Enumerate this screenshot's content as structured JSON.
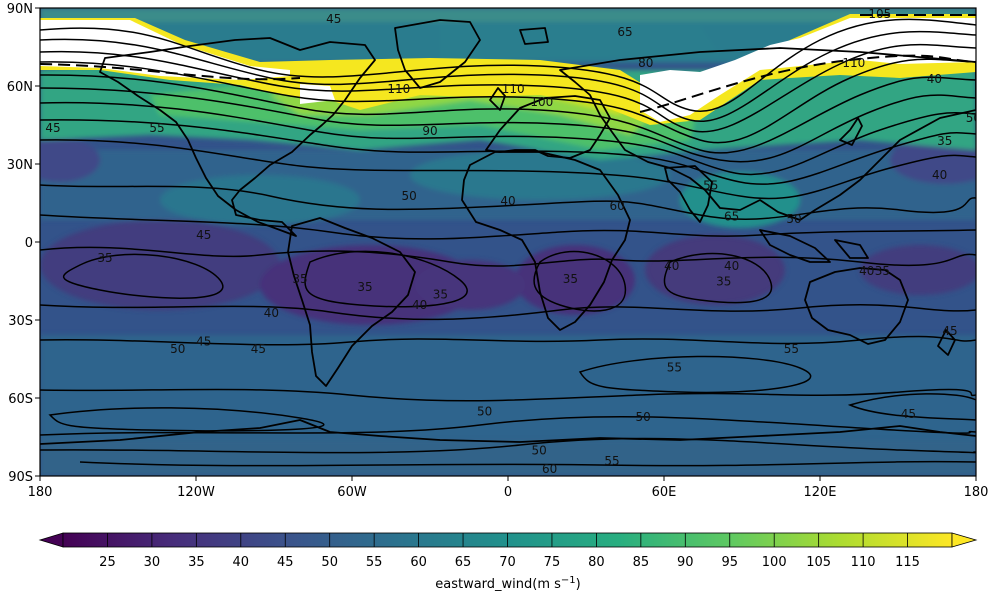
{
  "map": {
    "projection": "PlateCarree",
    "variable": "eastward_wind",
    "units_label": "eastward_wind(m s",
    "units_superscript": "−1",
    "units_close": ")",
    "x_ticks": [
      "180",
      "120W",
      "60W",
      "0",
      "60E",
      "120E",
      "180"
    ],
    "y_ticks": [
      "90N",
      "60N",
      "30N",
      "0",
      "30S",
      "60S",
      "90S"
    ],
    "colormap": "viridis",
    "color_levels": [
      25,
      30,
      35,
      40,
      45,
      50,
      55,
      60,
      65,
      70,
      75,
      80,
      85,
      90,
      95,
      100,
      105,
      110,
      115
    ],
    "colorbar_extend": "both",
    "above_max_color": "#ffffff",
    "contour_color": "#000000",
    "contour_labels": [
      {
        "text": "110",
        "lon": -42,
        "lat": 58
      },
      {
        "text": "110",
        "lon": 2,
        "lat": 58
      },
      {
        "text": "100",
        "lon": 13,
        "lat": 53
      },
      {
        "text": "90",
        "lon": -30,
        "lat": 42
      },
      {
        "text": "45",
        "lon": -175,
        "lat": 43
      },
      {
        "text": "45",
        "lon": -67,
        "lat": 85
      },
      {
        "text": "55",
        "lon": -135,
        "lat": 43
      },
      {
        "text": "65",
        "lon": 45,
        "lat": 80
      },
      {
        "text": "80",
        "lon": 53,
        "lat": 68
      },
      {
        "text": "110",
        "lon": 133,
        "lat": 68
      },
      {
        "text": "105",
        "lon": 143,
        "lat": 87
      },
      {
        "text": "40",
        "lon": 164,
        "lat": 62
      },
      {
        "text": "35",
        "lon": 168,
        "lat": 38
      },
      {
        "text": "40",
        "lon": 166,
        "lat": 25
      },
      {
        "text": "50",
        "lon": 179,
        "lat": 47
      },
      {
        "text": "50",
        "lon": -38,
        "lat": 17
      },
      {
        "text": "60",
        "lon": 42,
        "lat": 13
      },
      {
        "text": "65",
        "lon": 86,
        "lat": 9
      },
      {
        "text": "55",
        "lon": 78,
        "lat": 21
      },
      {
        "text": "50",
        "lon": 110,
        "lat": 8
      },
      {
        "text": "45",
        "lon": -117,
        "lat": 2
      },
      {
        "text": "40",
        "lon": 0,
        "lat": 15
      },
      {
        "text": "40",
        "lon": 63,
        "lat": -10
      },
      {
        "text": "40",
        "lon": 138,
        "lat": -12
      },
      {
        "text": "40",
        "lon": 86,
        "lat": -10
      },
      {
        "text": "35",
        "lon": -155,
        "lat": -7
      },
      {
        "text": "35",
        "lon": -80,
        "lat": -15
      },
      {
        "text": "35",
        "lon": -55,
        "lat": -18
      },
      {
        "text": "35",
        "lon": -26,
        "lat": -21
      },
      {
        "text": "35",
        "lon": 83,
        "lat": -16
      },
      {
        "text": "35",
        "lon": 24,
        "lat": -15
      },
      {
        "text": "35",
        "lon": 144,
        "lat": -12
      },
      {
        "text": "40",
        "lon": -34,
        "lat": -25
      },
      {
        "text": "40",
        "lon": -91,
        "lat": -28
      },
      {
        "text": "45",
        "lon": -117,
        "lat": -39
      },
      {
        "text": "45",
        "lon": -96,
        "lat": -42
      },
      {
        "text": "45",
        "lon": 170,
        "lat": -35
      },
      {
        "text": "50",
        "lon": -127,
        "lat": -42
      },
      {
        "text": "50",
        "lon": -9,
        "lat": -66
      },
      {
        "text": "50",
        "lon": 52,
        "lat": -68
      },
      {
        "text": "50",
        "lon": 12,
        "lat": -81
      },
      {
        "text": "55",
        "lon": 64,
        "lat": -49
      },
      {
        "text": "55",
        "lon": 109,
        "lat": -42
      },
      {
        "text": "55",
        "lon": 40,
        "lat": -85
      },
      {
        "text": "60",
        "lon": 16,
        "lat": -88
      },
      {
        "text": "45",
        "lon": 154,
        "lat": -67
      }
    ],
    "features": {
      "jet_core_northern": "above-max (>115) band from 150E across North America to 20W, 55N–80N",
      "tropical_minimum": "values near 30–35 over equatorial/southern tropics"
    }
  }
}
